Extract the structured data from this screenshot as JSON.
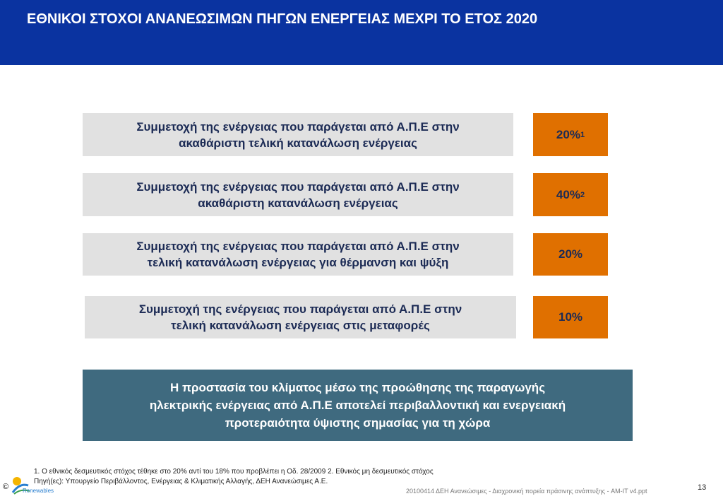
{
  "header": {
    "title": "ΕΘΝΙΚΟΙ ΣΤΟΧΟΙ ΑΝΑΝΕΩΣΙΜΩΝ ΠΗΓΩΝ ΕΝΕΡΓΕΙΑΣ ΜΕΧΡΙ ΤΟ ΕΤΟΣ 2020"
  },
  "targets": [
    {
      "lines": [
        "Συμμετοχή της ενέργειας που παράγεται από Α.Π.Ε στην",
        "ακαθάριστη τελική κατανάλωση ενέργειας"
      ],
      "value": "20%",
      "note": "1"
    },
    {
      "lines": [
        "Συμμετοχή της ενέργειας που παράγεται από Α.Π.Ε στην",
        "ακαθάριστη κατανάλωση ενέργειας"
      ],
      "value": "40%",
      "note": "2"
    },
    {
      "lines": [
        "Συμμετοχή της ενέργειας που παράγεται από Α.Π.Ε στην",
        "τελική κατανάλωση ενέργειας για θέρμανση και ψύξη"
      ],
      "value": "20%"
    },
    {
      "lines": [
        "Συμμετοχή της ενέργειας που παράγεται από Α.Π.Ε στην",
        "τελική κατανάλωση ενέργειας στις μεταφορές"
      ],
      "value": "10%"
    }
  ],
  "summary": {
    "lines": [
      "Η προστασία του κλίματος μέσω της προώθησης της παραγωγής",
      "ηλεκτρικής ενέργειας από Α.Π.Ε αποτελεί περιβαλλοντική και ενεργειακή",
      "προτεραιότητα ύψιστης σημασίας για τη χώρα"
    ]
  },
  "footnotes": [
    "1. Ο εθνικός δεσμευτικός στόχος τέθηκε στο 20% αντί του 18% που προβλέπει η Οδ. 28/2009 2. Εθνικός  μη δεσμευτικός στόχος",
    "Πηγή(ες): Υπουργείο Περιβάλλοντος, Ενέργειας & Κλιματικής Αλλαγής, ΔΕΗ Ανανεώσιμες Α.Ε."
  ],
  "footer": {
    "copyright": "©",
    "logo": "Renewables",
    "file": "20100414 ΔΕΗ Ανανεώσιμες - Διαχρονική πορεία πράσινης ανάπτυξης - AM-IT v4.ppt",
    "page": "13"
  }
}
